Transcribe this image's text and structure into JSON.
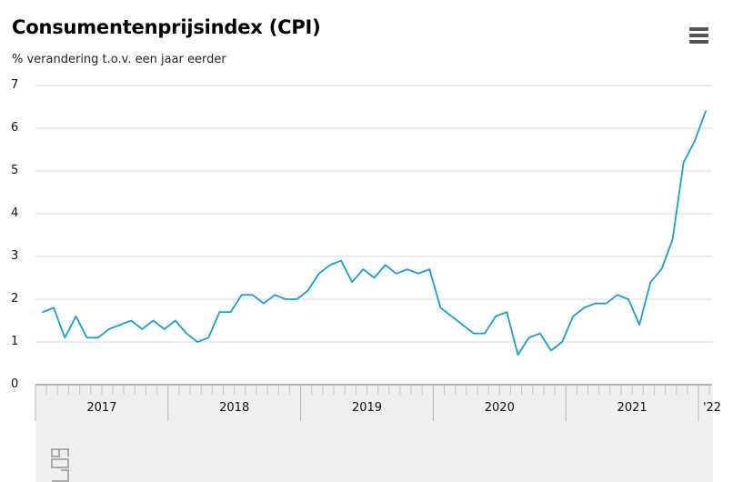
{
  "header": {
    "title": "Consumentenprijsindex (CPI)",
    "subtitle": "% verandering t.o.v. een jaar eerder"
  },
  "menu_icon": "hamburger-menu-icon",
  "logo_icon": "cbs-logo-icon",
  "colors": {
    "line": "#1a9fc9",
    "grid": "#d9d9d9",
    "band": "#efefef"
  },
  "chart_data": {
    "type": "line",
    "title": "Consumentenprijsindex (CPI)",
    "subtitle": "% verandering t.o.v. een jaar eerder",
    "xlabel": "",
    "ylabel": "",
    "ylim": [
      0,
      7
    ],
    "yticks": [
      0,
      1,
      2,
      3,
      4,
      5,
      6,
      7
    ],
    "grid": true,
    "x_axis": {
      "year_labels": [
        "2017",
        "2018",
        "2019",
        "2020",
        "2021",
        "'22"
      ]
    },
    "series": [
      {
        "x": [
          "2017-01",
          "2017-02",
          "2017-03",
          "2017-04",
          "2017-05",
          "2017-06",
          "2017-07",
          "2017-08",
          "2017-09",
          "2017-10",
          "2017-11",
          "2017-12",
          "2018-01",
          "2018-02",
          "2018-03",
          "2018-04",
          "2018-05",
          "2018-06",
          "2018-07",
          "2018-08",
          "2018-09",
          "2018-10",
          "2018-11",
          "2018-12",
          "2019-01",
          "2019-02",
          "2019-03",
          "2019-04",
          "2019-05",
          "2019-06",
          "2019-07",
          "2019-08",
          "2019-09",
          "2019-10",
          "2019-11",
          "2019-12",
          "2020-01",
          "2020-02",
          "2020-03",
          "2020-04",
          "2020-05",
          "2020-06",
          "2020-07",
          "2020-08",
          "2020-09",
          "2020-10",
          "2020-11",
          "2020-12",
          "2021-01",
          "2021-02",
          "2021-03",
          "2021-04",
          "2021-05",
          "2021-06",
          "2021-07",
          "2021-08",
          "2021-09",
          "2021-10",
          "2021-11",
          "2021-12",
          "2022-01"
        ],
        "values": [
          1.7,
          1.8,
          1.1,
          1.6,
          1.1,
          1.1,
          1.3,
          1.4,
          1.5,
          1.3,
          1.5,
          1.3,
          1.5,
          1.2,
          1.0,
          1.1,
          1.7,
          1.7,
          2.1,
          2.1,
          1.9,
          2.1,
          2.0,
          2.0,
          2.2,
          2.6,
          2.8,
          2.9,
          2.4,
          2.7,
          2.5,
          2.8,
          2.6,
          2.7,
          2.6,
          2.7,
          1.8,
          1.6,
          1.4,
          1.2,
          1.2,
          1.6,
          1.7,
          0.7,
          1.1,
          1.2,
          0.8,
          1.0,
          1.6,
          1.8,
          1.9,
          1.9,
          2.1,
          2.0,
          1.4,
          2.4,
          2.7,
          3.4,
          5.2,
          5.7,
          6.4
        ]
      }
    ]
  }
}
